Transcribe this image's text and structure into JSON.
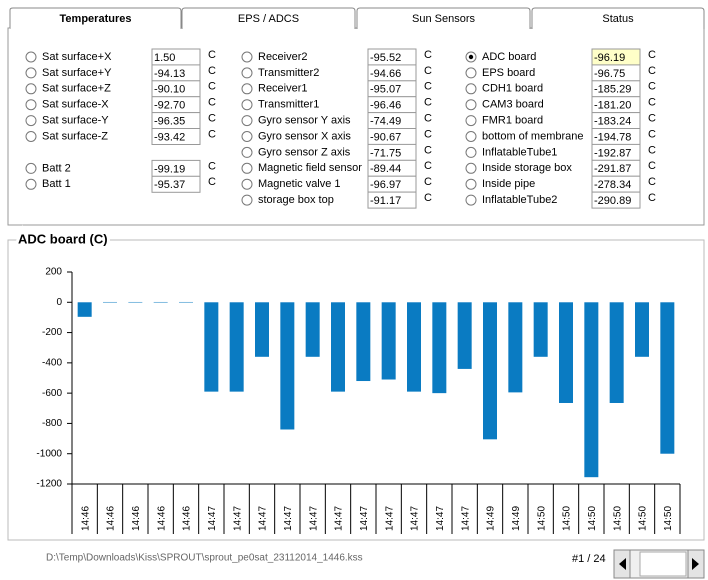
{
  "tabs": [
    {
      "label": "Temperatures",
      "active": true
    },
    {
      "label": "EPS / ADCS",
      "active": false
    },
    {
      "label": "Sun Sensors",
      "active": false
    },
    {
      "label": "Status",
      "active": false
    }
  ],
  "sensors": {
    "unit": "C",
    "columns": [
      [
        {
          "label": "Sat surface+X",
          "value": "1.50"
        },
        {
          "label": "Sat surface+Y",
          "value": "-94.13"
        },
        {
          "label": "Sat surface+Z",
          "value": "-90.10"
        },
        {
          "label": "Sat surface-X",
          "value": "-92.70"
        },
        {
          "label": "Sat surface-Y",
          "value": "-96.35"
        },
        {
          "label": "Sat surface-Z",
          "value": "-93.42"
        },
        {
          "label": "Batt 2",
          "value": "-99.19"
        },
        {
          "label": "Batt 1",
          "value": "-95.37"
        }
      ],
      [
        {
          "label": "Receiver2",
          "value": "-95.52"
        },
        {
          "label": "Transmitter2",
          "value": "-94.66"
        },
        {
          "label": "Receiver1",
          "value": "-95.07"
        },
        {
          "label": "Transmitter1",
          "value": "-96.46"
        },
        {
          "label": "Gyro sensor Y axis",
          "value": "-74.49"
        },
        {
          "label": "Gyro sensor X axis",
          "value": "-90.67"
        },
        {
          "label": "Gyro sensor Z axis",
          "value": "-71.75"
        },
        {
          "label": "Magnetic field sensor",
          "value": "-89.44"
        },
        {
          "label": "Magnetic valve 1",
          "value": "-96.97"
        },
        {
          "label": "storage box top",
          "value": "-91.17"
        }
      ],
      [
        {
          "label": "ADC board",
          "value": "-96.19",
          "selected": true
        },
        {
          "label": "EPS board",
          "value": "-96.75"
        },
        {
          "label": "CDH1 board",
          "value": "-185.29"
        },
        {
          "label": "CAM3 board",
          "value": "-181.20"
        },
        {
          "label": "FMR1 board",
          "value": "-183.24"
        },
        {
          "label": "bottom of membrane",
          "value": "-194.78"
        },
        {
          "label": "InflatableTube1",
          "value": "-192.87"
        },
        {
          "label": "Inside storage box",
          "value": "-291.87"
        },
        {
          "label": "Inside pipe",
          "value": "-278.34"
        },
        {
          "label": "InflatableTube2",
          "value": "-290.89"
        }
      ]
    ]
  },
  "chart_data": {
    "type": "bar",
    "title": "ADC board (C)",
    "categories": [
      "14:46",
      "14:46",
      "14:46",
      "14:46",
      "14:46",
      "14:47",
      "14:47",
      "14:47",
      "14:47",
      "14:47",
      "14:47",
      "14:47",
      "14:47",
      "14:47",
      "14:47",
      "14:47",
      "14:49",
      "14:49",
      "14:50",
      "14:50",
      "14:50",
      "14:50",
      "14:50",
      "14:50"
    ],
    "values": [
      -96,
      2,
      2,
      2,
      2,
      -590,
      -590,
      -360,
      -840,
      -360,
      -590,
      -520,
      -510,
      -590,
      -600,
      -440,
      -905,
      -595,
      -360,
      -665,
      -1155,
      -665,
      -360,
      -1000
    ],
    "color": "#0a7bc2",
    "ylim": [
      -1200,
      200
    ],
    "yticks": [
      -1200,
      -1000,
      -800,
      -600,
      -400,
      -200,
      0,
      200
    ],
    "grid": false
  },
  "footer": {
    "path": "D:\\Temp\\Downloads\\Kiss\\SPROUT\\sprout_pe0sat_23112014_1446.kss",
    "page": "#1 / 24"
  }
}
